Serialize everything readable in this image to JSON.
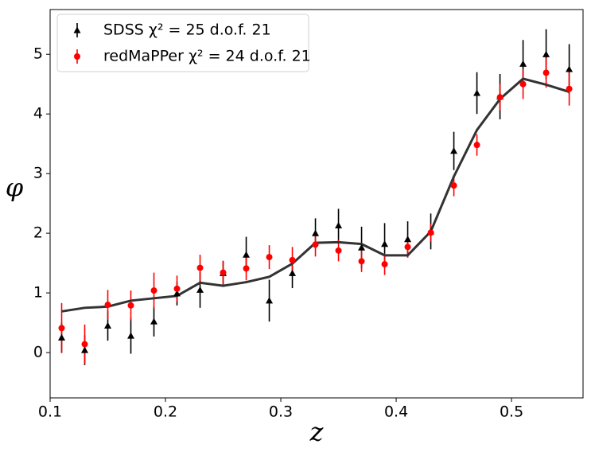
{
  "chart_data": {
    "type": "errorbar",
    "x_label": "z",
    "y_label": "φ",
    "x": [
      0.11,
      0.13,
      0.15,
      0.17,
      0.19,
      0.21,
      0.23,
      0.25,
      0.27,
      0.29,
      0.31,
      0.33,
      0.35,
      0.37,
      0.39,
      0.41,
      0.43,
      0.45,
      0.47,
      0.49,
      0.51,
      0.53,
      0.55
    ],
    "series": [
      {
        "name": "SDSS χ² = 25 d.o.f. 21",
        "color": "#000000",
        "marker": "triangle",
        "values": [
          0.25,
          0.04,
          0.45,
          0.28,
          0.52,
          0.99,
          1.05,
          1.33,
          1.64,
          0.87,
          1.33,
          2.0,
          2.13,
          1.76,
          1.82,
          1.9,
          2.03,
          3.38,
          4.35,
          4.29,
          4.84,
          5.0,
          4.75
        ],
        "errors": [
          0.25,
          0.25,
          0.25,
          0.3,
          0.25,
          0.2,
          0.3,
          0.2,
          0.3,
          0.35,
          0.25,
          0.25,
          0.28,
          0.35,
          0.35,
          0.3,
          0.3,
          0.32,
          0.35,
          0.38,
          0.4,
          0.42,
          0.42
        ]
      },
      {
        "name": "redMaPPer χ² = 24 d.o.f. 21",
        "color": "#ff0000",
        "marker": "circle",
        "values": [
          0.41,
          0.14,
          0.8,
          0.79,
          1.04,
          1.07,
          1.42,
          1.34,
          1.41,
          1.6,
          1.55,
          1.81,
          1.71,
          1.53,
          1.48,
          1.77,
          2.01,
          2.8,
          3.48,
          4.28,
          4.5,
          4.69,
          4.42
        ],
        "errors": [
          0.42,
          0.33,
          0.25,
          0.25,
          0.3,
          0.22,
          0.22,
          0.2,
          0.2,
          0.2,
          0.22,
          0.2,
          0.18,
          0.18,
          0.18,
          0.18,
          0.15,
          0.18,
          0.18,
          0.22,
          0.25,
          0.25,
          0.28
        ]
      }
    ],
    "model": {
      "color": "#333333",
      "values": [
        0.69,
        0.75,
        0.77,
        0.87,
        0.91,
        0.95,
        1.17,
        1.12,
        1.18,
        1.27,
        1.49,
        1.84,
        1.85,
        1.82,
        1.63,
        1.63,
        2.03,
        2.95,
        3.73,
        4.25,
        4.59,
        4.49,
        4.37
      ]
    },
    "xlim": [
      0.1,
      0.562
    ],
    "ylim": [
      -0.76,
      5.75
    ],
    "xticks": [
      0.1,
      0.2,
      0.3,
      0.4,
      0.5
    ],
    "yticks": [
      0,
      1,
      2,
      3,
      4,
      5
    ],
    "legend": "upper left",
    "grid": false
  }
}
